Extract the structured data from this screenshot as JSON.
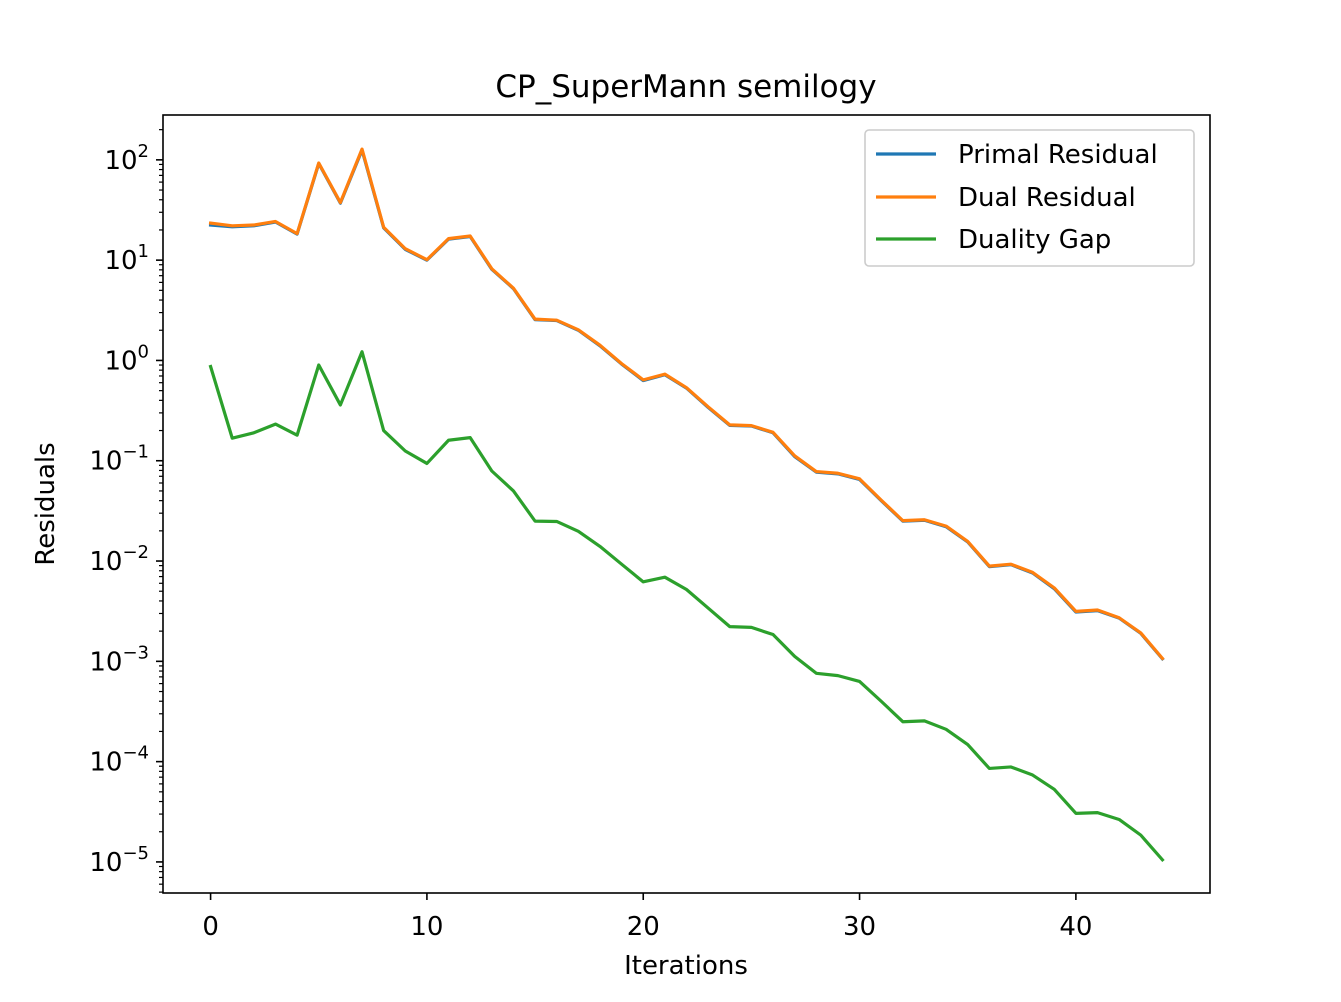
{
  "chart_data": {
    "type": "line",
    "title": "CP_SuperMann semilogy",
    "xlabel": "Iterations",
    "ylabel": "Residuals",
    "yscale": "log",
    "xlim": [
      -2.2,
      46.2
    ],
    "ylim": [
      4.9e-06,
      280
    ],
    "grid": false,
    "legend_position": "top-right",
    "x_ticks": [
      0,
      10,
      20,
      30,
      40
    ],
    "x_tick_labels": [
      "0",
      "10",
      "20",
      "30",
      "40"
    ],
    "y_ticks": [
      1e-05,
      0.0001,
      0.001,
      0.01,
      0.1,
      1,
      10,
      100
    ],
    "y_tick_labels": [
      {
        "base": "10",
        "exp": "−5"
      },
      {
        "base": "10",
        "exp": "−4"
      },
      {
        "base": "10",
        "exp": "−3"
      },
      {
        "base": "10",
        "exp": "−2"
      },
      {
        "base": "10",
        "exp": "−1"
      },
      {
        "base": "10",
        "exp": "0"
      },
      {
        "base": "10",
        "exp": "1"
      },
      {
        "base": "10",
        "exp": "2"
      }
    ],
    "x": [
      0,
      1,
      2,
      3,
      4,
      5,
      6,
      7,
      8,
      9,
      10,
      11,
      12,
      13,
      14,
      15,
      16,
      17,
      18,
      19,
      20,
      21,
      22,
      23,
      24,
      25,
      26,
      27,
      28,
      29,
      30,
      31,
      32,
      33,
      34,
      35,
      36,
      37,
      38,
      39,
      40,
      41,
      42,
      43,
      44
    ],
    "series": [
      {
        "name": "Primal Residual",
        "color": "#1f77b4",
        "values": [
          22.4,
          21.5,
          22.0,
          24.0,
          18.2,
          92,
          37,
          125,
          21.0,
          12.8,
          10.0,
          16.2,
          17.2,
          8.1,
          5.2,
          2.55,
          2.5,
          2.0,
          1.4,
          0.92,
          0.63,
          0.72,
          0.53,
          0.34,
          0.225,
          0.222,
          0.19,
          0.11,
          0.077,
          0.074,
          0.065,
          0.04,
          0.025,
          0.0255,
          0.022,
          0.0155,
          0.0088,
          0.0092,
          0.0076,
          0.0053,
          0.0031,
          0.0032,
          0.0027,
          0.0019,
          0.00106
        ]
      },
      {
        "name": "Dual Residual",
        "color": "#ff7f0e",
        "values": [
          23.4,
          22.0,
          22.4,
          24.3,
          18.4,
          93,
          37.5,
          128,
          21.3,
          13.0,
          10.1,
          16.4,
          17.4,
          8.2,
          5.25,
          2.58,
          2.52,
          2.02,
          1.42,
          0.93,
          0.64,
          0.73,
          0.535,
          0.345,
          0.228,
          0.224,
          0.192,
          0.112,
          0.078,
          0.075,
          0.066,
          0.0405,
          0.0253,
          0.0258,
          0.0223,
          0.0157,
          0.0089,
          0.0093,
          0.0077,
          0.0054,
          0.00315,
          0.00325,
          0.00272,
          0.00192,
          0.00107
        ]
      },
      {
        "name": "Duality Gap",
        "color": "#2ca02c",
        "values": [
          0.87,
          0.168,
          0.19,
          0.232,
          0.18,
          0.9,
          0.36,
          1.22,
          0.2,
          0.125,
          0.094,
          0.16,
          0.17,
          0.079,
          0.05,
          0.025,
          0.0248,
          0.0198,
          0.014,
          0.0093,
          0.0062,
          0.0069,
          0.0052,
          0.0034,
          0.00222,
          0.00218,
          0.00185,
          0.00112,
          0.00076,
          0.00072,
          0.00063,
          0.0004,
          0.00025,
          0.000255,
          0.00021,
          0.000148,
          8.55e-05,
          8.85e-05,
          7.35e-05,
          5.3e-05,
          3.05e-05,
          3.1e-05,
          2.65e-05,
          1.85e-05,
          1.05e-05
        ]
      }
    ]
  }
}
